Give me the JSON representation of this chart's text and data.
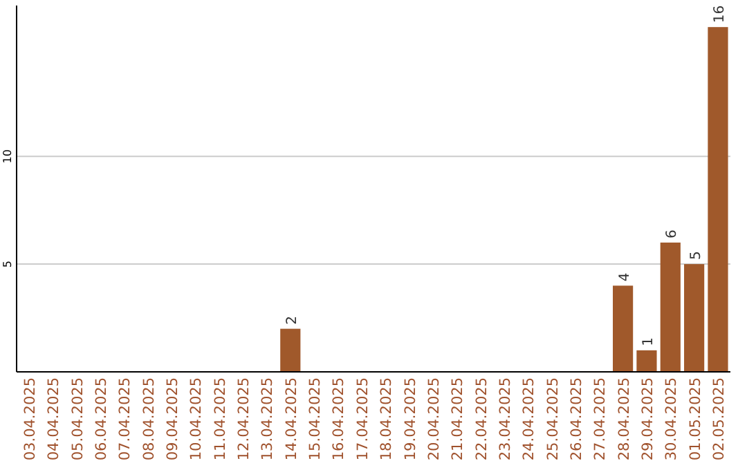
{
  "chart_data": {
    "type": "bar",
    "categories": [
      "03.04.2025",
      "04.04.2025",
      "05.04.2025",
      "06.04.2025",
      "07.04.2025",
      "08.04.2025",
      "09.04.2025",
      "10.04.2025",
      "11.04.2025",
      "12.04.2025",
      "13.04.2025",
      "14.04.2025",
      "15.04.2025",
      "16.04.2025",
      "17.04.2025",
      "18.04.2025",
      "19.04.2025",
      "20.04.2025",
      "21.04.2025",
      "22.04.2025",
      "23.04.2025",
      "24.04.2025",
      "25.04.2025",
      "26.04.2025",
      "27.04.2025",
      "28.04.2025",
      "29.04.2025",
      "30.04.2025",
      "01.05.2025",
      "02.05.2025"
    ],
    "values": [
      0,
      0,
      0,
      0,
      0,
      0,
      0,
      0,
      0,
      0,
      0,
      2,
      0,
      0,
      0,
      0,
      0,
      0,
      0,
      0,
      0,
      0,
      0,
      0,
      0,
      4,
      1,
      6,
      5,
      16
    ],
    "value_labels": [
      null,
      null,
      null,
      null,
      null,
      null,
      null,
      null,
      null,
      null,
      null,
      "2",
      null,
      null,
      null,
      null,
      null,
      null,
      null,
      null,
      null,
      null,
      null,
      null,
      null,
      "4",
      "1",
      "6",
      "5",
      "16"
    ],
    "color": "#a0592b",
    "ylim": [
      0,
      17
    ],
    "yticks": [
      5,
      10
    ],
    "grid": "y"
  }
}
